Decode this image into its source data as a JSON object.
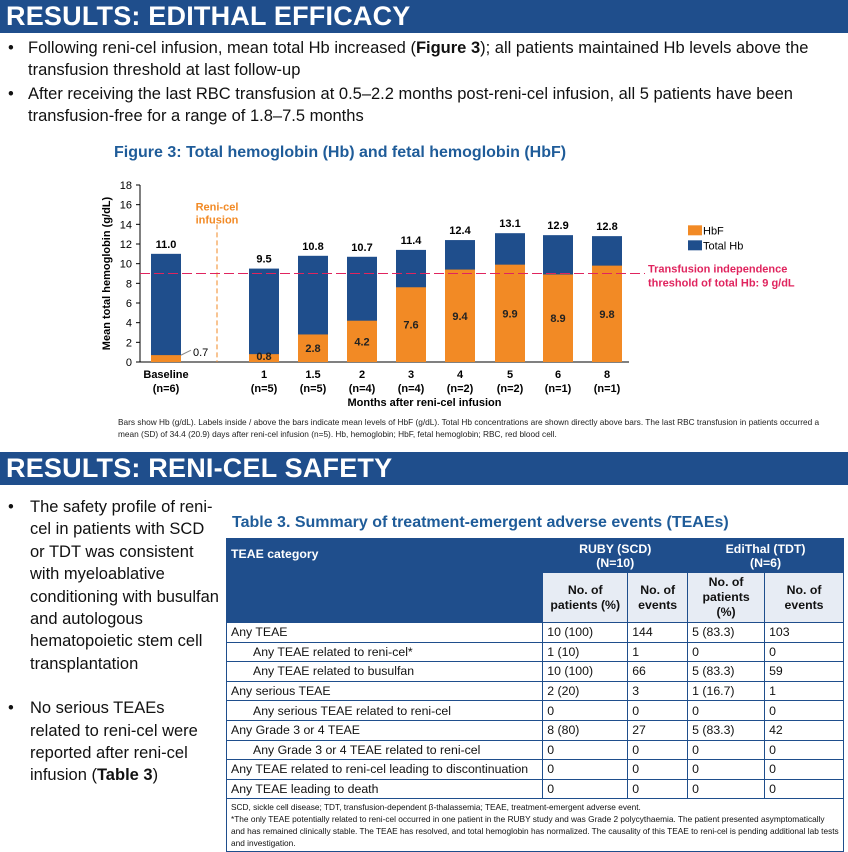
{
  "section1": {
    "title": "RESULTS: EDITHAL EFFICACY",
    "bullets": [
      {
        "pre": "Following reni-cel infusion, mean total Hb increased (",
        "bold": "Figure 3",
        "post": "); all patients maintained Hb levels above the transfusion threshold at last follow-up"
      },
      {
        "text": "After receiving the last RBC transfusion at 0.5–2.2 months post-reni-cel infusion, all 5 patients have been transfusion-free for a range of 1.8–7.5 months"
      }
    ]
  },
  "figure": {
    "title": "Figure 3: Total hemoglobin (Hb) and fetal hemoglobin (HbF)",
    "caption": "Bars show Hb (g/dL). Labels inside / above the bars indicate mean levels of HbF (g/dL). Total Hb concentrations are shown directly above bars. The last RBC transfusion in patients occurred a mean (SD) of 34.4 (20.9) days after reni-cel infusion (n=5). Hb, hemoglobin; HbF, fetal hemoglobin; RBC, red blood cell."
  },
  "chart_data": {
    "type": "bar",
    "stacked": "overlay",
    "xlabel": "Months after reni-cel infusion",
    "ylabel": "Mean total hemoglobin (g/dL)",
    "ylim": [
      0,
      18
    ],
    "yticks": [
      0,
      2,
      4,
      6,
      8,
      10,
      12,
      14,
      16,
      18
    ],
    "categories": [
      {
        "label": "Baseline",
        "n": "(n=6)"
      },
      {
        "label": "1",
        "n": "(n=5)"
      },
      {
        "label": "1.5",
        "n": "(n=5)"
      },
      {
        "label": "2",
        "n": "(n=4)"
      },
      {
        "label": "3",
        "n": "(n=4)"
      },
      {
        "label": "4",
        "n": "(n=2)"
      },
      {
        "label": "5",
        "n": "(n=2)"
      },
      {
        "label": "6",
        "n": "(n=1)"
      },
      {
        "label": "8",
        "n": "(n=1)"
      }
    ],
    "series": [
      {
        "name": "HbF",
        "color": "#f28a25",
        "values": [
          0.7,
          0.8,
          2.8,
          4.2,
          7.6,
          9.4,
          9.9,
          8.9,
          9.8
        ]
      },
      {
        "name": "Total Hb",
        "color": "#1f4e8c",
        "values": [
          11.0,
          9.5,
          10.8,
          10.7,
          11.4,
          12.4,
          13.1,
          12.9,
          12.8
        ]
      }
    ],
    "value_labels": {
      "HbF": [
        "0.7",
        "0.8",
        "2.8",
        "4.2",
        "7.6",
        "9.4",
        "9.9",
        "8.9",
        "9.8"
      ],
      "Total Hb": [
        "11.0",
        "9.5",
        "10.8",
        "10.7",
        "11.4",
        "12.4",
        "13.1",
        "12.9",
        "12.8"
      ]
    },
    "annotations": {
      "infusion": [
        "Reni-cel",
        "infusion"
      ],
      "threshold_value": 9,
      "threshold_label": [
        "Transfusion independence",
        "threshold of total Hb: 9 g/dL"
      ],
      "threshold_color": "#e0245e"
    },
    "legend": "right"
  },
  "section2": {
    "title": "RESULTS: RENI-CEL SAFETY",
    "bullets": [
      {
        "text": "The safety profile of reni-cel in patients with SCD or TDT was consistent with myeloablative conditioning with busulfan and autologous hematopoietic stem cell transplantation"
      },
      {
        "pre": "No serious TEAEs related to reni-cel were reported after reni-cel infusion (",
        "bold": "Table 3",
        "post": ")"
      }
    ]
  },
  "table": {
    "title": "Table 3. Summary of treatment-emergent adverse events (TEAEs)",
    "col0": "TEAE category",
    "group1": [
      "RUBY (SCD)",
      "(N=10)"
    ],
    "group2": [
      "EdiThal (TDT)",
      "(N=6)"
    ],
    "sub": [
      "No. of patients (%)",
      "No. of events",
      "No. of patients (%)",
      "No. of events"
    ],
    "rows": [
      {
        "c": [
          "Any TEAE",
          "10 (100)",
          "144",
          "5 (83.3)",
          "103"
        ],
        "indent": 0
      },
      {
        "c": [
          "Any TEAE related to reni-cel*",
          "1 (10)",
          "1",
          "0",
          "0"
        ],
        "indent": 1
      },
      {
        "c": [
          "Any TEAE related to busulfan",
          "10 (100)",
          "66",
          "5 (83.3)",
          "59"
        ],
        "indent": 1
      },
      {
        "c": [
          "Any serious TEAE",
          "2 (20)",
          "3",
          "1 (16.7)",
          "1"
        ],
        "indent": 0
      },
      {
        "c": [
          "Any serious TEAE related to reni-cel",
          "0",
          "0",
          "0",
          "0"
        ],
        "indent": 1
      },
      {
        "c": [
          "Any Grade 3 or 4 TEAE",
          "8 (80)",
          "27",
          "5 (83.3)",
          "42"
        ],
        "indent": 0
      },
      {
        "c": [
          "Any Grade 3 or 4 TEAE related to reni-cel",
          "0",
          "0",
          "0",
          "0"
        ],
        "indent": 1
      },
      {
        "c": [
          "Any TEAE related to reni-cel leading to discontinuation",
          "0",
          "0",
          "0",
          "0"
        ],
        "indent": 0
      },
      {
        "c": [
          "Any TEAE leading to death",
          "0",
          "0",
          "0",
          "0"
        ],
        "indent": 0
      }
    ],
    "footnote1": "SCD, sickle cell disease; TDT, transfusion-dependent β-thalassemia; TEAE, treatment-emergent adverse event.",
    "footnote2": "*The only TEAE potentially related to reni-cel occurred in one patient in the RUBY study and was Grade 2 polycythaemia. The patient presented asymptomatically and has remained clinically stable. The TEAE has resolved, and total hemoglobin has normalized. The causality of this TEAE to reni-cel is pending additional lab tests and investigation."
  }
}
